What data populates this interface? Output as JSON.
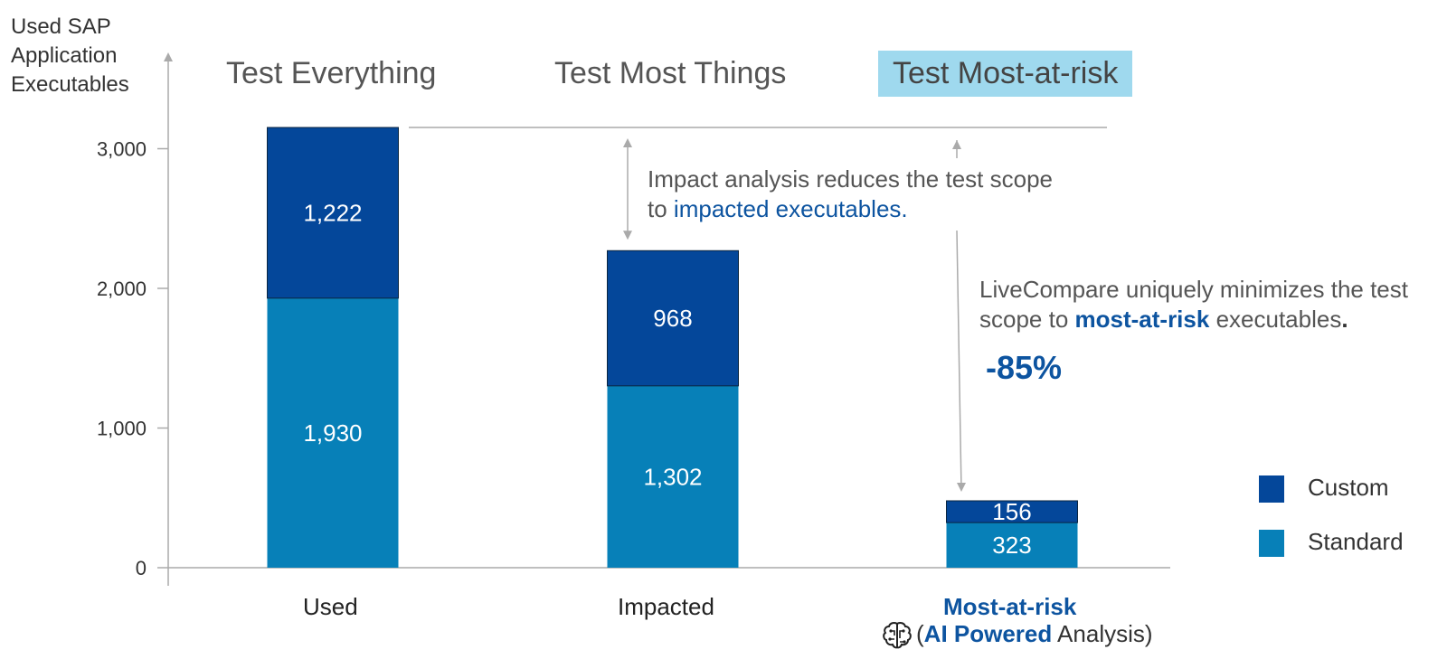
{
  "chart_data": {
    "type": "bar",
    "stacked": true,
    "ylabel": "Used SAP Application Executables",
    "yticks": [
      "0",
      "1,000",
      "2,000",
      "3,000"
    ],
    "ylim": [
      0,
      3600
    ],
    "categories": [
      "Used",
      "Impacted",
      "Most-at-risk"
    ],
    "series": [
      {
        "name": "Standard",
        "values": [
          1930,
          1302,
          323
        ],
        "labels": [
          "1,930",
          "1,302",
          "323"
        ],
        "color": "#0780b8"
      },
      {
        "name": "Custom",
        "values": [
          1222,
          968,
          156
        ],
        "labels": [
          "1,222",
          "968",
          "156"
        ],
        "color": "#04479a"
      }
    ],
    "column_titles": [
      "Test Everything",
      "Test Most Things",
      "Test Most-at-risk"
    ],
    "highlight_color": "#9fd9ee",
    "legend_position": "right"
  },
  "annotations": {
    "impact": {
      "line1": "Impact analysis reduces the test scope",
      "line2_pre": "to ",
      "line2_em": "impacted executables."
    },
    "livecompare": {
      "line1": "LiveCompare uniquely minimizes the test",
      "line2_pre": "scope to ",
      "line2_em": "most-at-risk",
      "line2_post": " executables",
      "line2_dot": "."
    },
    "reduction": "-85%"
  },
  "category_sub": {
    "open": "(",
    "bold": "AI Powered",
    "rest": " Analysis)",
    "icon": "brain-circuit-icon"
  }
}
